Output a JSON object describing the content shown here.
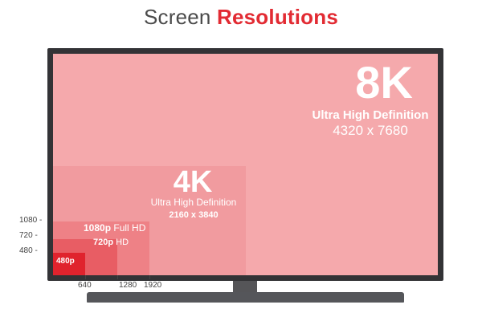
{
  "title": {
    "part1": "Screen",
    "part2": "Resolutions"
  },
  "resolutions": {
    "r8k": {
      "name": "8K",
      "subtitle": "Ultra High Definition",
      "dimensions": "4320 x 7680"
    },
    "r4k": {
      "name": "4K",
      "subtitle": "Ultra High Definition",
      "dimensions": "2160 x 3840"
    },
    "r1080": {
      "name": "1080p",
      "suffix": "Full HD"
    },
    "r720": {
      "name": "720p",
      "suffix": "HD"
    },
    "r480": {
      "name": "480p"
    }
  },
  "y_axis": [
    "1080 -",
    "720 -",
    "480 -"
  ],
  "x_axis": [
    "640",
    "1280",
    "1920"
  ],
  "colors": {
    "accent": "#e22b33",
    "tv_frame": "#333336",
    "r8k": "#f5a9ac",
    "r4k": "#f19b9f",
    "r1080": "#ee8186",
    "r720": "#e85d64",
    "r480": "#e0232d"
  }
}
